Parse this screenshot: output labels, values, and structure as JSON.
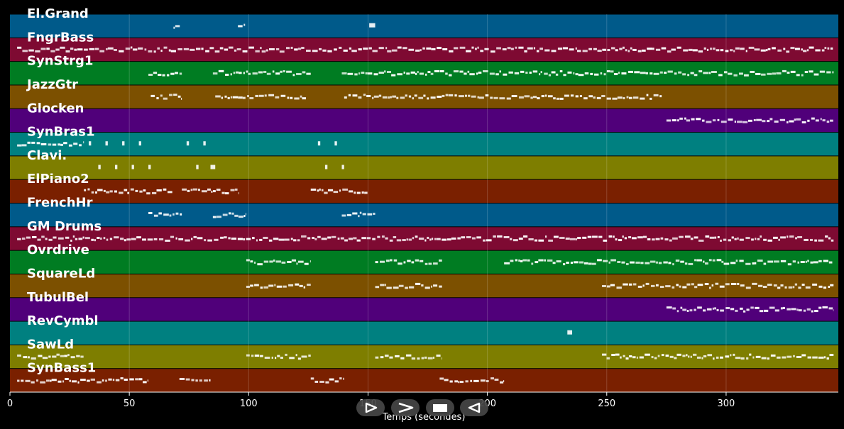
{
  "chart_data": {
    "type": "piano-roll",
    "xlabel": "Temps (secondes)",
    "xlim": [
      0,
      347
    ],
    "xticks": [
      0,
      50,
      100,
      150,
      200,
      250,
      300
    ],
    "grid": true,
    "tracks": [
      {
        "name": "El.Grand",
        "color": "#005a8a",
        "notes": [
          [
            68.5,
            71.5
          ],
          [
            95.5,
            98.5
          ],
          [
            150.5,
            153
          ]
        ]
      },
      {
        "name": "FngrBass",
        "color": "#7e0a32",
        "notes": [
          [
            3,
            345
          ]
        ]
      },
      {
        "name": "SynStrg1",
        "color": "#007c22",
        "notes": [
          [
            58,
            72
          ],
          [
            85,
            126
          ],
          [
            139,
            345
          ]
        ]
      },
      {
        "name": "JazzGtr",
        "color": "#7c5000",
        "notes": [
          [
            59,
            72
          ],
          [
            86,
            124
          ],
          [
            140,
            273
          ]
        ]
      },
      {
        "name": "Glocken",
        "color": "#50007a",
        "notes": [
          [
            275,
            345
          ]
        ]
      },
      {
        "name": "SynBras1",
        "color": "#008080",
        "notes": [
          [
            3,
            31
          ],
          [
            33,
            34
          ],
          [
            40,
            41
          ],
          [
            47,
            48
          ],
          [
            54,
            55
          ],
          [
            74,
            75
          ],
          [
            81,
            82
          ],
          [
            129,
            130
          ],
          [
            136,
            137
          ]
        ]
      },
      {
        "name": "Clavi.",
        "color": "#7e7e00",
        "notes": [
          [
            37,
            38
          ],
          [
            44,
            45
          ],
          [
            51,
            52
          ],
          [
            58,
            59
          ],
          [
            78,
            79
          ],
          [
            84,
            86
          ],
          [
            132,
            133
          ],
          [
            139,
            140
          ]
        ]
      },
      {
        "name": "ElPiano2",
        "color": "#7a2000",
        "notes": [
          [
            31,
            68
          ],
          [
            72,
            96
          ],
          [
            126,
            150
          ]
        ]
      },
      {
        "name": "FrenchHr",
        "color": "#005a8a",
        "notes": [
          [
            58,
            72
          ],
          [
            85,
            99
          ],
          [
            139,
            153
          ]
        ]
      },
      {
        "name": "GM Drums",
        "color": "#7e0a32",
        "notes": [
          [
            3,
            345
          ]
        ]
      },
      {
        "name": "Ovrdrive",
        "color": "#007c22",
        "notes": [
          [
            99,
            126
          ],
          [
            153,
            181
          ],
          [
            207,
            345
          ]
        ]
      },
      {
        "name": "SquareLd",
        "color": "#7c5000",
        "notes": [
          [
            99,
            126
          ],
          [
            153,
            181
          ],
          [
            248,
            345
          ]
        ]
      },
      {
        "name": "TubulBel",
        "color": "#50007a",
        "notes": [
          [
            275,
            345
          ]
        ]
      },
      {
        "name": "RevCymbl",
        "color": "#008080",
        "notes": [
          [
            233.5,
            235.5
          ]
        ]
      },
      {
        "name": "SawLd",
        "color": "#7e7e00",
        "notes": [
          [
            3,
            31
          ],
          [
            99,
            126
          ],
          [
            153,
            181
          ],
          [
            248,
            345
          ]
        ]
      },
      {
        "name": "SynBass1",
        "color": "#7a2000",
        "notes": [
          [
            3,
            58
          ],
          [
            71,
            84
          ],
          [
            126,
            140
          ],
          [
            180,
            207
          ]
        ]
      }
    ]
  },
  "controls": [
    {
      "name": "play",
      "icon": "play-icon"
    },
    {
      "name": "fast-forward",
      "icon": "fast-forward-icon"
    },
    {
      "name": "stop",
      "icon": "stop-icon"
    },
    {
      "name": "rewind",
      "icon": "rewind-icon"
    }
  ]
}
